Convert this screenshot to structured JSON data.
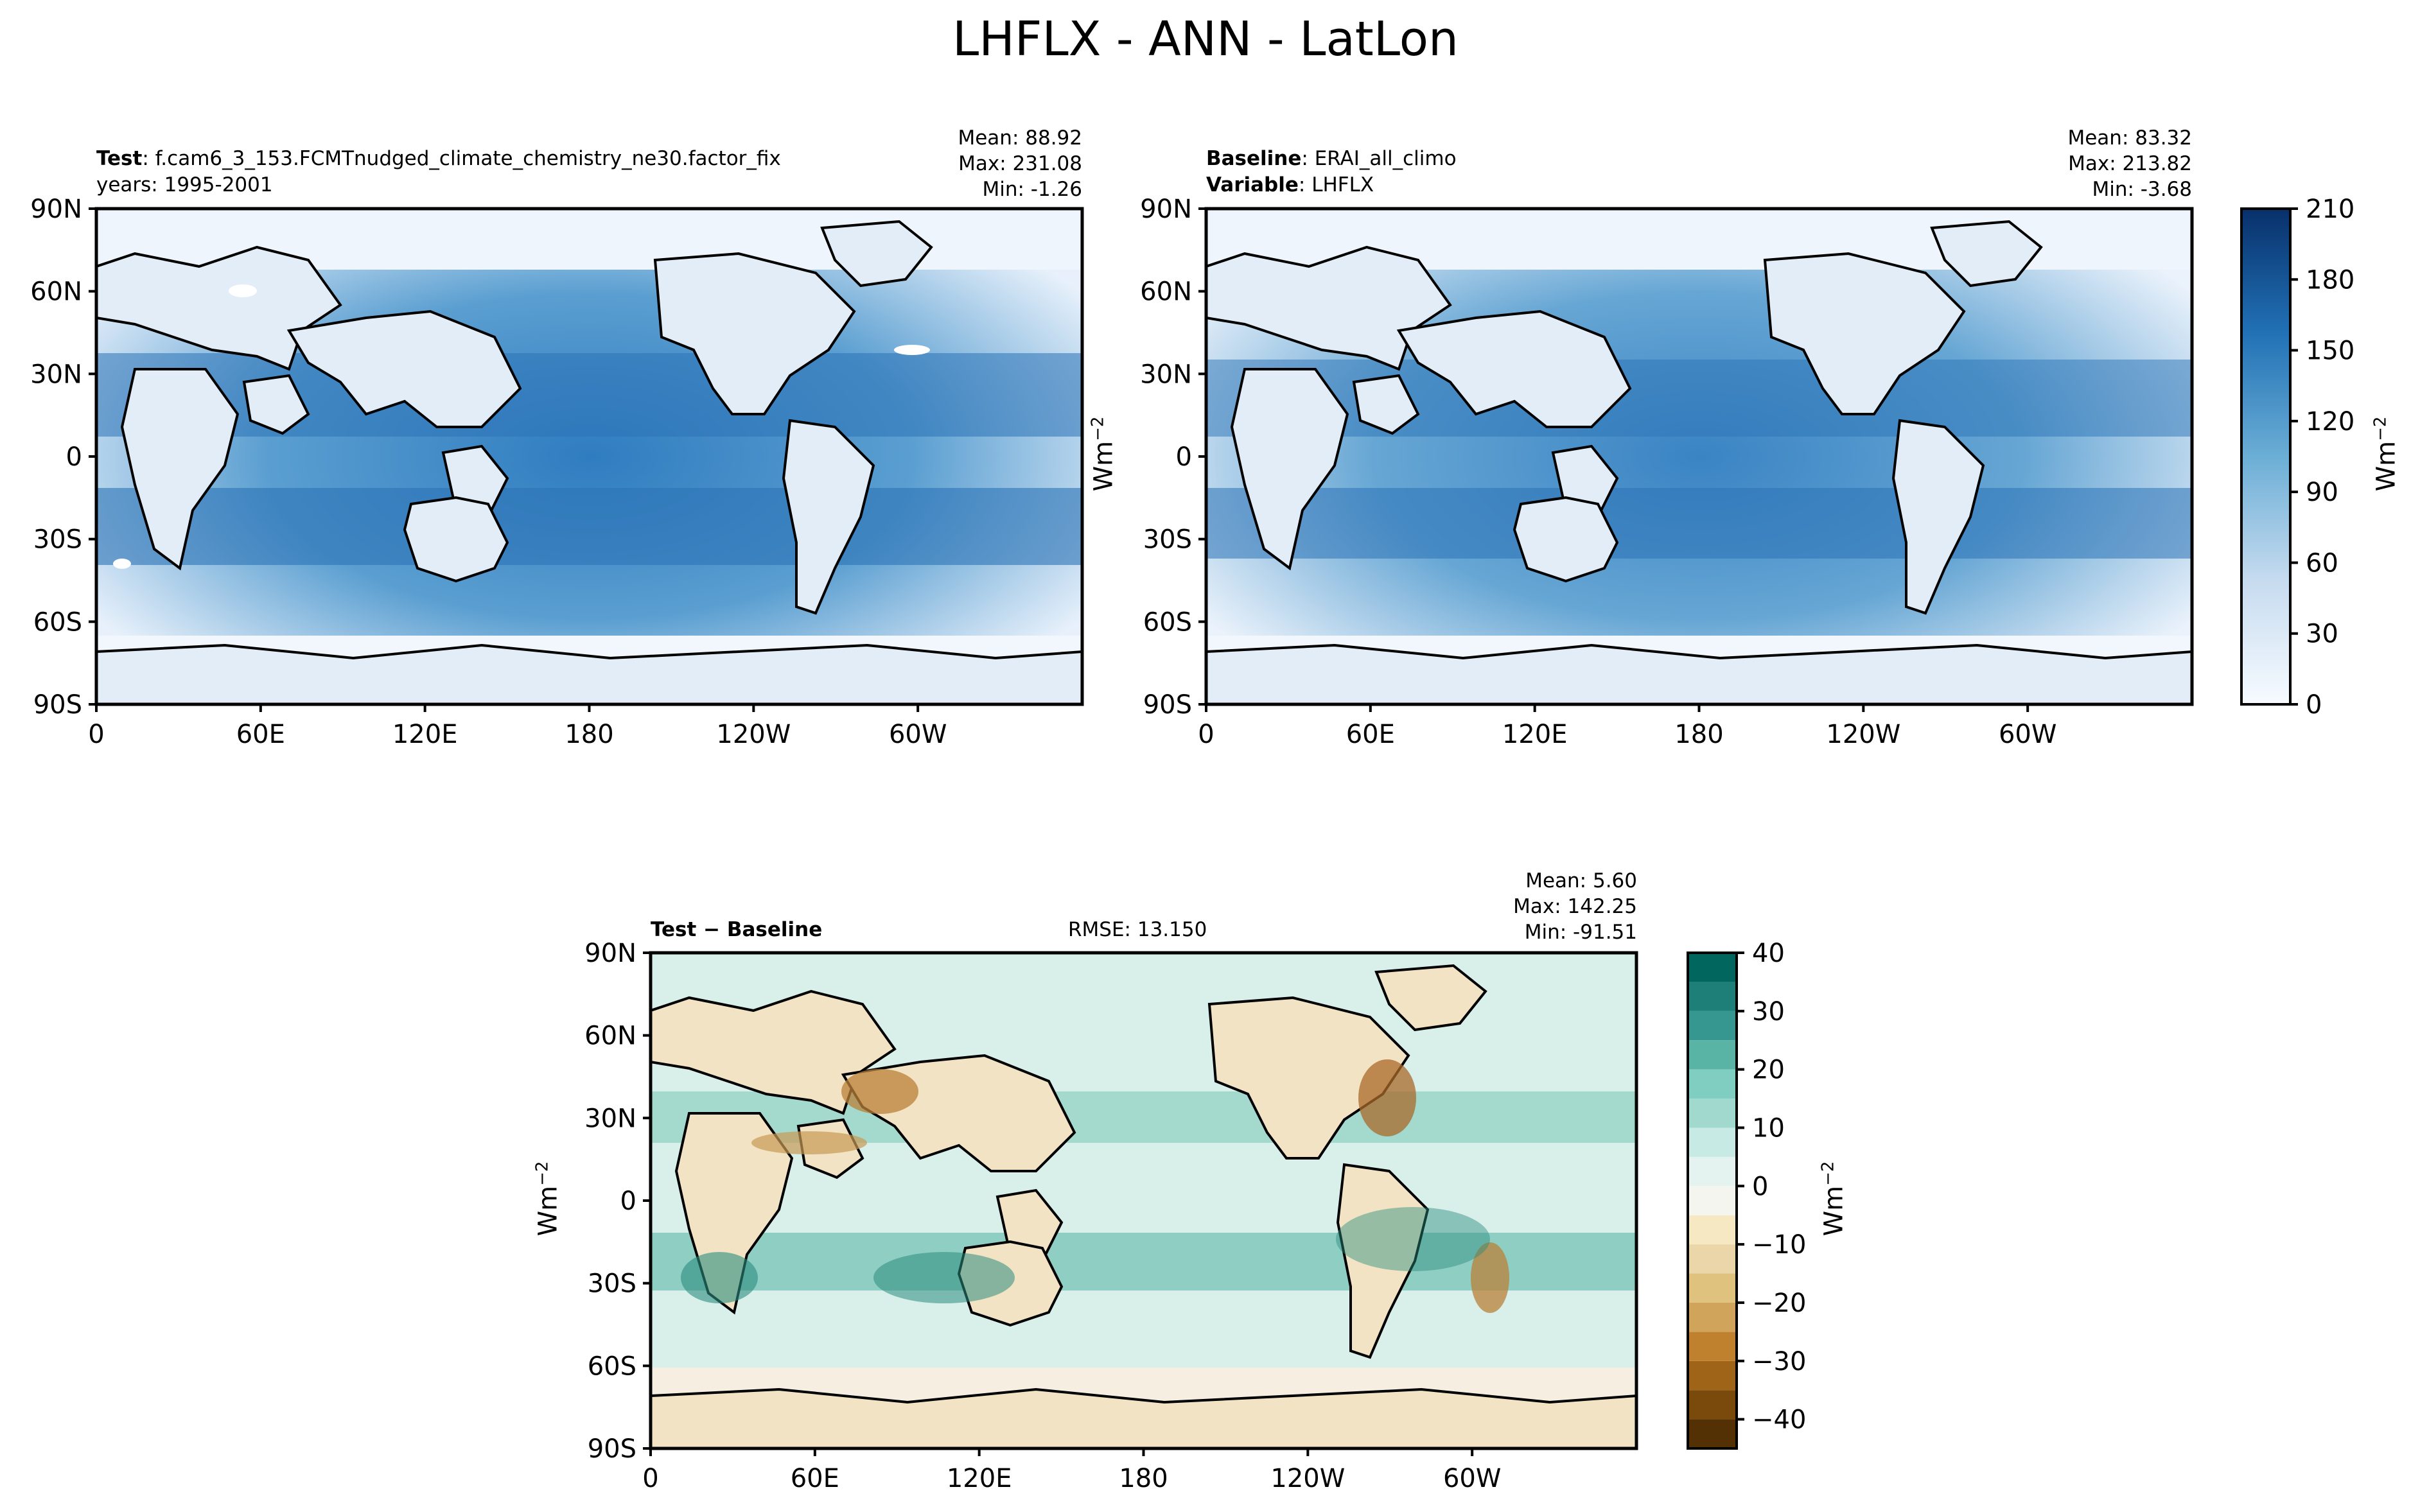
{
  "figure": {
    "title": "LHFLX - ANN - LatLon"
  },
  "panels": {
    "test": {
      "label_bold": "Test",
      "label_text": "f.cam6_3_153.FCMTnudged_climate_chemistry_ne30.factor_fix",
      "years": "years: 1995-2001",
      "stats": {
        "mean": "Mean: 88.92",
        "max": "Max: 231.08",
        "min": "Min: -1.26"
      }
    },
    "baseline": {
      "label_bold": "Baseline",
      "label_text": "ERAI_all_climo",
      "variable_bold": "Variable",
      "variable_text": "LHFLX",
      "stats": {
        "mean": "Mean: 83.32",
        "max": "Max: 213.82",
        "min": "Min: -3.68"
      }
    },
    "diff": {
      "label": "Test − Baseline",
      "rmse": "RMSE: 13.150",
      "stats": {
        "mean": "Mean:  5.60",
        "max": "Max: 142.25",
        "min": "Min: -91.51"
      }
    }
  },
  "units": {
    "base": "Wm",
    "exp": "−2"
  },
  "chart_data": [
    {
      "type": "heatmap",
      "title": "Test",
      "xlabel": "",
      "ylabel": "",
      "x_ticks": [
        "0",
        "60E",
        "120E",
        "180",
        "120W",
        "60W"
      ],
      "x_tick_lon": [
        0,
        60,
        120,
        180,
        240,
        300
      ],
      "xlim": [
        0,
        360
      ],
      "y_ticks": [
        "90N",
        "60N",
        "30N",
        "0",
        "30S",
        "60S",
        "90S"
      ],
      "y_tick_lat": [
        90,
        60,
        30,
        0,
        -30,
        -60,
        -90
      ],
      "ylim": [
        -90,
        90
      ],
      "colormap": "Blues",
      "levels": [
        0,
        10,
        20,
        30,
        40,
        50,
        60,
        70,
        80,
        90,
        100,
        110,
        120,
        130,
        140,
        150,
        160,
        170,
        180,
        190,
        200,
        210
      ],
      "colorbar_ticks": [
        "0",
        "30",
        "60",
        "90",
        "120",
        "150",
        "180",
        "210"
      ],
      "colorbar_label": "Wm−2",
      "mean": 88.92,
      "max": 231.08,
      "min": -1.26
    },
    {
      "type": "heatmap",
      "title": "Baseline",
      "xlabel": "",
      "ylabel": "Wm−2",
      "x_ticks": [
        "0",
        "60E",
        "120E",
        "180",
        "120W",
        "60W"
      ],
      "x_tick_lon": [
        0,
        60,
        120,
        180,
        240,
        300
      ],
      "xlim": [
        0,
        360
      ],
      "y_ticks": [
        "90N",
        "60N",
        "30N",
        "0",
        "30S",
        "60S",
        "90S"
      ],
      "y_tick_lat": [
        90,
        60,
        30,
        0,
        -30,
        -60,
        -90
      ],
      "ylim": [
        -90,
        90
      ],
      "colormap": "Blues",
      "levels": [
        0,
        10,
        20,
        30,
        40,
        50,
        60,
        70,
        80,
        90,
        100,
        110,
        120,
        130,
        140,
        150,
        160,
        170,
        180,
        190,
        200,
        210
      ],
      "colorbar_ticks": [
        "0",
        "30",
        "60",
        "90",
        "120",
        "150",
        "180",
        "210"
      ],
      "colorbar_label": "Wm−2",
      "mean": 83.32,
      "max": 213.82,
      "min": -3.68
    },
    {
      "type": "heatmap",
      "title": "Test − Baseline",
      "xlabel": "",
      "ylabel": "Wm−2",
      "x_ticks": [
        "0",
        "60E",
        "120E",
        "180",
        "120W",
        "60W"
      ],
      "x_tick_lon": [
        0,
        60,
        120,
        180,
        240,
        300
      ],
      "xlim": [
        0,
        360
      ],
      "y_ticks": [
        "90N",
        "60N",
        "30N",
        "0",
        "30S",
        "60S",
        "90S"
      ],
      "y_tick_lat": [
        90,
        60,
        30,
        0,
        -30,
        -60,
        -90
      ],
      "ylim": [
        -90,
        90
      ],
      "colormap": "BrBG",
      "levels": [
        -45,
        -40,
        -35,
        -30,
        -25,
        -20,
        -15,
        -10,
        -5,
        0,
        5,
        10,
        15,
        20,
        25,
        30,
        35,
        40
      ],
      "colorbar_ticks": [
        "−40",
        "−30",
        "−20",
        "−10",
        "0",
        "10",
        "20",
        "30",
        "40"
      ],
      "colorbar_tick_values": [
        -40,
        -30,
        -20,
        -10,
        0,
        10,
        20,
        30,
        40
      ],
      "colorbar_label": "Wm−2",
      "rmse": 13.15,
      "mean": 5.6,
      "max": 142.25,
      "min": -91.51
    }
  ]
}
